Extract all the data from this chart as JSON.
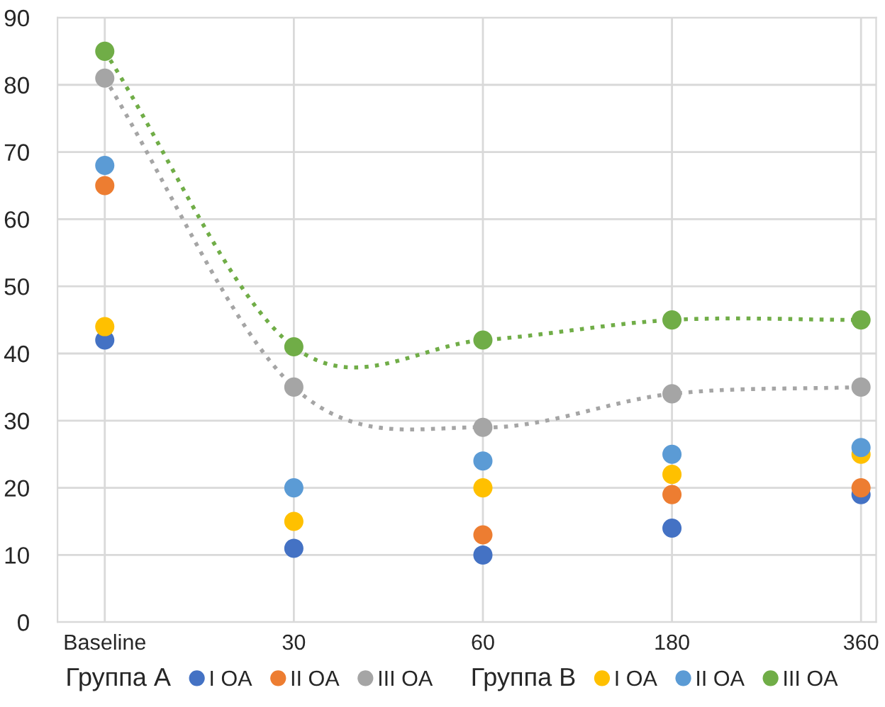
{
  "chart_data": {
    "type": "scatter",
    "categories": [
      "Baseline",
      "30",
      "60",
      "180",
      "360"
    ],
    "series": [
      {
        "name": "I OA",
        "color": "#4472c4",
        "values": [
          42,
          11,
          10,
          14,
          19
        ]
      },
      {
        "name": "II OA",
        "color": "#ed7d31",
        "values": [
          65,
          null,
          13,
          19,
          20
        ]
      },
      {
        "name": "III OA",
        "color": "#a5a5a5",
        "type": "line",
        "line_style": "dotted",
        "values": [
          81,
          35,
          29,
          34,
          35
        ]
      },
      {
        "name": "I OA",
        "color": "#ffc000",
        "values": [
          44,
          15,
          20,
          22,
          25
        ]
      },
      {
        "name": "II OA",
        "color": "#5b9bd5",
        "values": [
          68,
          20,
          24,
          25,
          26
        ]
      },
      {
        "name": "III OA",
        "color": "#70ad47",
        "type": "line",
        "line_style": "dotted",
        "values": [
          85,
          41,
          42,
          45,
          45
        ]
      }
    ],
    "annotations": [
      "Группа А",
      "Группа В"
    ],
    "marker": "circle",
    "ylim": [
      0,
      90
    ],
    "yticks": [
      0,
      10,
      20,
      30,
      40,
      50,
      60,
      70,
      80,
      90
    ],
    "grid": true,
    "legend": "bottom"
  }
}
